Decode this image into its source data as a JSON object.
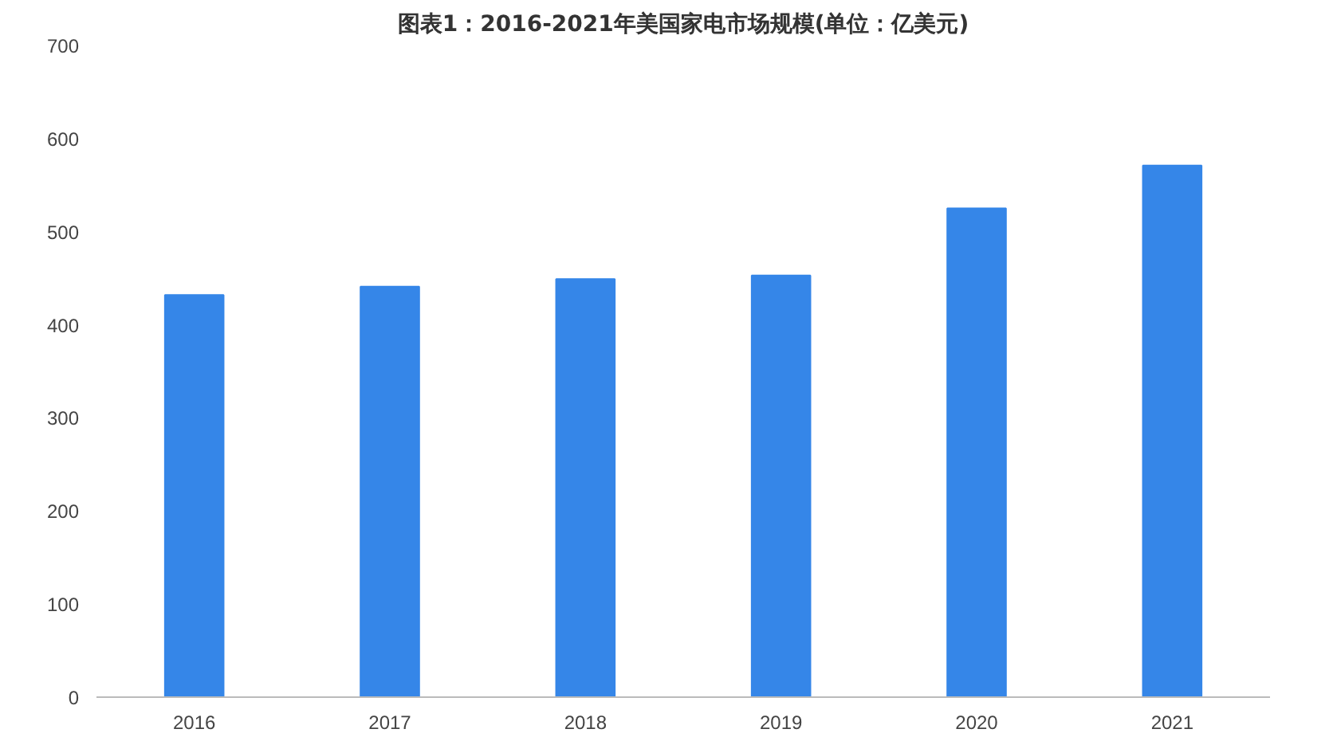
{
  "chart_data": {
    "type": "bar",
    "title": "图表1：2016-2021年美国家电市场规模(单位：亿美元)",
    "categories": [
      "2016",
      "2017",
      "2018",
      "2019",
      "2020",
      "2021"
    ],
    "values": [
      432,
      441,
      449,
      453,
      525,
      571
    ],
    "color": "#3586e8",
    "ylim": [
      0,
      700
    ],
    "yticks": [
      0,
      100,
      200,
      300,
      400,
      500,
      600,
      700
    ],
    "grid": false
  }
}
